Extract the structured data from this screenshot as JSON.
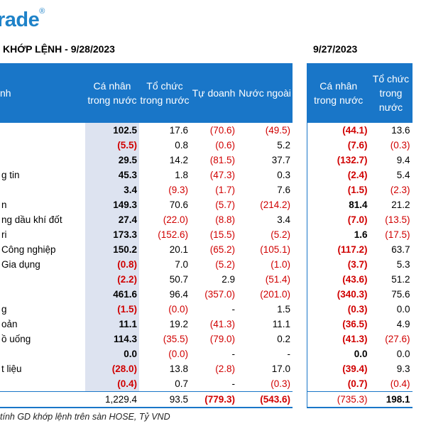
{
  "header": {
    "logo_text": "rade",
    "logo_mark": "®",
    "title_left": "KHỚP LỆNH - 9/28/2023",
    "title_right": "9/27/2023"
  },
  "columns_left": {
    "sector": "nh",
    "ca_nhan": "Cá nhân trong nước",
    "to_chuc": "Tổ chức trong nước",
    "tu_doanh": "Tự doanh",
    "nuoc_ngoai": "Nước ngoài"
  },
  "columns_right": {
    "ca_nhan": "Cá nhân trong nước",
    "to_chuc": "Tổ chức trong nước"
  },
  "rows": [
    {
      "sector": "",
      "ca_nhan": "102.5",
      "to_chuc": "17.6",
      "tu_doanh": "(70.6)",
      "nuoc_ngoai": "(49.5)",
      "prev_ca_nhan": "(44.1)",
      "prev_to_chuc": "13.6"
    },
    {
      "sector": "",
      "ca_nhan": "(5.5)",
      "to_chuc": "0.8",
      "tu_doanh": "(0.6)",
      "nuoc_ngoai": "5.2",
      "prev_ca_nhan": "(7.6)",
      "prev_to_chuc": "(0.3)"
    },
    {
      "sector": "",
      "ca_nhan": "29.5",
      "to_chuc": "14.2",
      "tu_doanh": "(81.5)",
      "nuoc_ngoai": "37.7",
      "prev_ca_nhan": "(132.7)",
      "prev_to_chuc": "9.4"
    },
    {
      "sector": "g tin",
      "ca_nhan": "45.3",
      "to_chuc": "1.8",
      "tu_doanh": "(47.3)",
      "nuoc_ngoai": "0.3",
      "prev_ca_nhan": "(2.4)",
      "prev_to_chuc": "5.4"
    },
    {
      "sector": "",
      "ca_nhan": "3.4",
      "to_chuc": "(9.3)",
      "tu_doanh": "(1.7)",
      "nuoc_ngoai": "7.6",
      "prev_ca_nhan": "(1.5)",
      "prev_to_chuc": "(2.3)"
    },
    {
      "sector": "n",
      "ca_nhan": "149.3",
      "to_chuc": "70.6",
      "tu_doanh": "(5.7)",
      "nuoc_ngoai": "(214.2)",
      "prev_ca_nhan": "81.4",
      "prev_to_chuc": "21.2"
    },
    {
      "sector": "ng dầu khí đốt",
      "ca_nhan": "27.4",
      "to_chuc": "(22.0)",
      "tu_doanh": "(8.8)",
      "nuoc_ngoai": "3.4",
      "prev_ca_nhan": "(7.0)",
      "prev_to_chuc": "(13.5)"
    },
    {
      "sector": "ri",
      "ca_nhan": "173.3",
      "to_chuc": "(152.6)",
      "tu_doanh": "(15.5)",
      "nuoc_ngoai": "(5.2)",
      "prev_ca_nhan": "1.6",
      "prev_to_chuc": "(17.5)"
    },
    {
      "sector": "Công nghiệp",
      "ca_nhan": "150.2",
      "to_chuc": "20.1",
      "tu_doanh": "(65.2)",
      "nuoc_ngoai": "(105.1)",
      "prev_ca_nhan": "(117.2)",
      "prev_to_chuc": "63.7"
    },
    {
      "sector": "Gia dụng",
      "ca_nhan": "(0.8)",
      "to_chuc": "7.0",
      "tu_doanh": "(5.2)",
      "nuoc_ngoai": "(1.0)",
      "prev_ca_nhan": "(3.7)",
      "prev_to_chuc": "5.3"
    },
    {
      "sector": "",
      "ca_nhan": "(2.2)",
      "to_chuc": "50.7",
      "tu_doanh": "2.9",
      "nuoc_ngoai": "(51.4)",
      "prev_ca_nhan": "(43.6)",
      "prev_to_chuc": "51.2"
    },
    {
      "sector": "",
      "ca_nhan": "461.6",
      "to_chuc": "96.4",
      "tu_doanh": "(357.0)",
      "nuoc_ngoai": "(201.0)",
      "prev_ca_nhan": "(340.3)",
      "prev_to_chuc": "75.6"
    },
    {
      "sector": "g",
      "ca_nhan": "(1.5)",
      "to_chuc": "(0.0)",
      "tu_doanh": "-",
      "nuoc_ngoai": "1.5",
      "prev_ca_nhan": "(0.3)",
      "prev_to_chuc": "0.0"
    },
    {
      "sector": "oản",
      "ca_nhan": "11.1",
      "to_chuc": "19.2",
      "tu_doanh": "(41.3)",
      "nuoc_ngoai": "11.1",
      "prev_ca_nhan": "(36.5)",
      "prev_to_chuc": "4.9"
    },
    {
      "sector": "ồ uống",
      "ca_nhan": "114.3",
      "to_chuc": "(35.5)",
      "tu_doanh": "(79.0)",
      "nuoc_ngoai": "0.2",
      "prev_ca_nhan": "(41.3)",
      "prev_to_chuc": "(27.6)"
    },
    {
      "sector": "",
      "ca_nhan": "0.0",
      "to_chuc": "(0.0)",
      "tu_doanh": "-",
      "nuoc_ngoai": "-",
      "prev_ca_nhan": "0.0",
      "prev_to_chuc": "0.0"
    },
    {
      "sector": "t liệu",
      "ca_nhan": "(28.0)",
      "to_chuc": "13.8",
      "tu_doanh": "(2.8)",
      "nuoc_ngoai": "17.0",
      "prev_ca_nhan": "(39.4)",
      "prev_to_chuc": "9.3"
    },
    {
      "sector": "",
      "ca_nhan": "(0.4)",
      "to_chuc": "0.7",
      "tu_doanh": "-",
      "nuoc_ngoai": "(0.3)",
      "prev_ca_nhan": "(0.7)",
      "prev_to_chuc": "(0.4)"
    }
  ],
  "totals": {
    "ca_nhan": "1,229.4",
    "to_chuc": "93.5",
    "tu_doanh": "(779.3)",
    "nuoc_ngoai": "(543.6)",
    "prev_ca_nhan": "(735.3)",
    "prev_to_chuc": "198.1"
  },
  "footnote": "tính GD khớp lệnh trên sàn HOSE, Tỷ VND",
  "colors": {
    "header_blue": "#1976c8",
    "highlight_col": "#dde3f0",
    "negative": "#d00000",
    "logo": "#1e82c8"
  }
}
